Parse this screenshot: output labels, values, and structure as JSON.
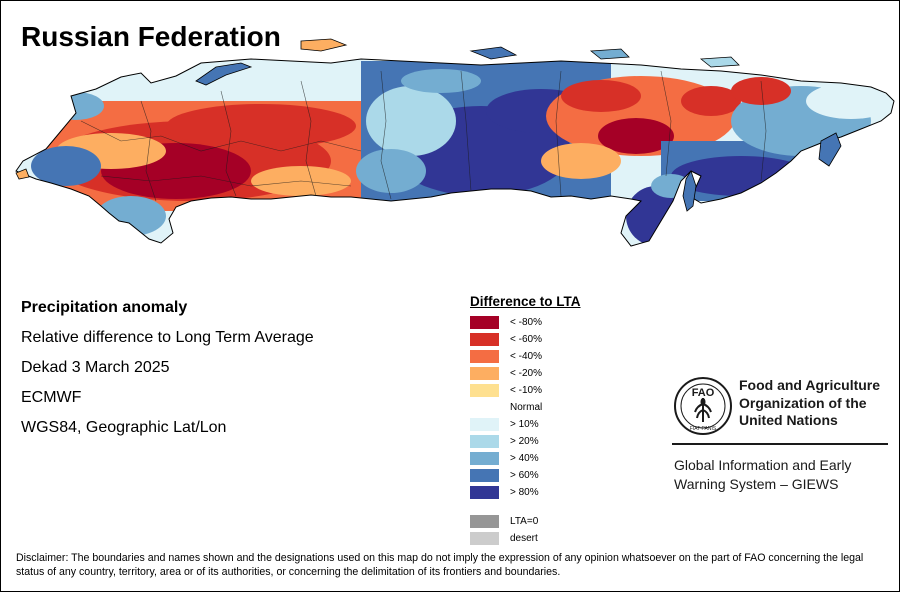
{
  "title": "Russian Federation",
  "info": {
    "heading": "Precipitation anomaly",
    "subtitle": "Relative difference to Long Term Average",
    "period": "Dekad 3 March 2025",
    "source": "ECMWF",
    "projection": "WGS84, Geographic Lat/Lon"
  },
  "legend": {
    "title": "Difference to LTA",
    "items": [
      {
        "label": "< -80%",
        "color": "#a50026"
      },
      {
        "label": "< -60%",
        "color": "#d73027"
      },
      {
        "label": "< -40%",
        "color": "#f46d43"
      },
      {
        "label": "< -20%",
        "color": "#fdae61"
      },
      {
        "label": "< -10%",
        "color": "#fee090"
      }
    ],
    "normal": "Normal",
    "items_wet": [
      {
        "label": "> 10%",
        "color": "#e0f3f8"
      },
      {
        "label": "> 20%",
        "color": "#abd9e9"
      },
      {
        "label": "> 40%",
        "color": "#74add1"
      },
      {
        "label": "> 60%",
        "color": "#4575b4"
      },
      {
        "label": "> 80%",
        "color": "#313695"
      }
    ],
    "items_other": [
      {
        "label": "LTA=0",
        "color": "#969696"
      },
      {
        "label": "desert",
        "color": "#cccccc"
      }
    ]
  },
  "logo": {
    "acronym": "FAO",
    "motto": "FIAT PANIS",
    "org_name": [
      "Food and Agriculture",
      "Organization of the",
      "United Nations"
    ],
    "program": [
      "Global Information and Early",
      "Warning System – GIEWS"
    ]
  },
  "disclaimer": "Disclaimer: The boundaries and names shown and the designations used on this map do not imply the expression of any opinion whatsoever on the part of FAO concerning the legal status of any country, territory, area or of its authorities, or concerning the delimitation of its frontiers and boundaries."
}
